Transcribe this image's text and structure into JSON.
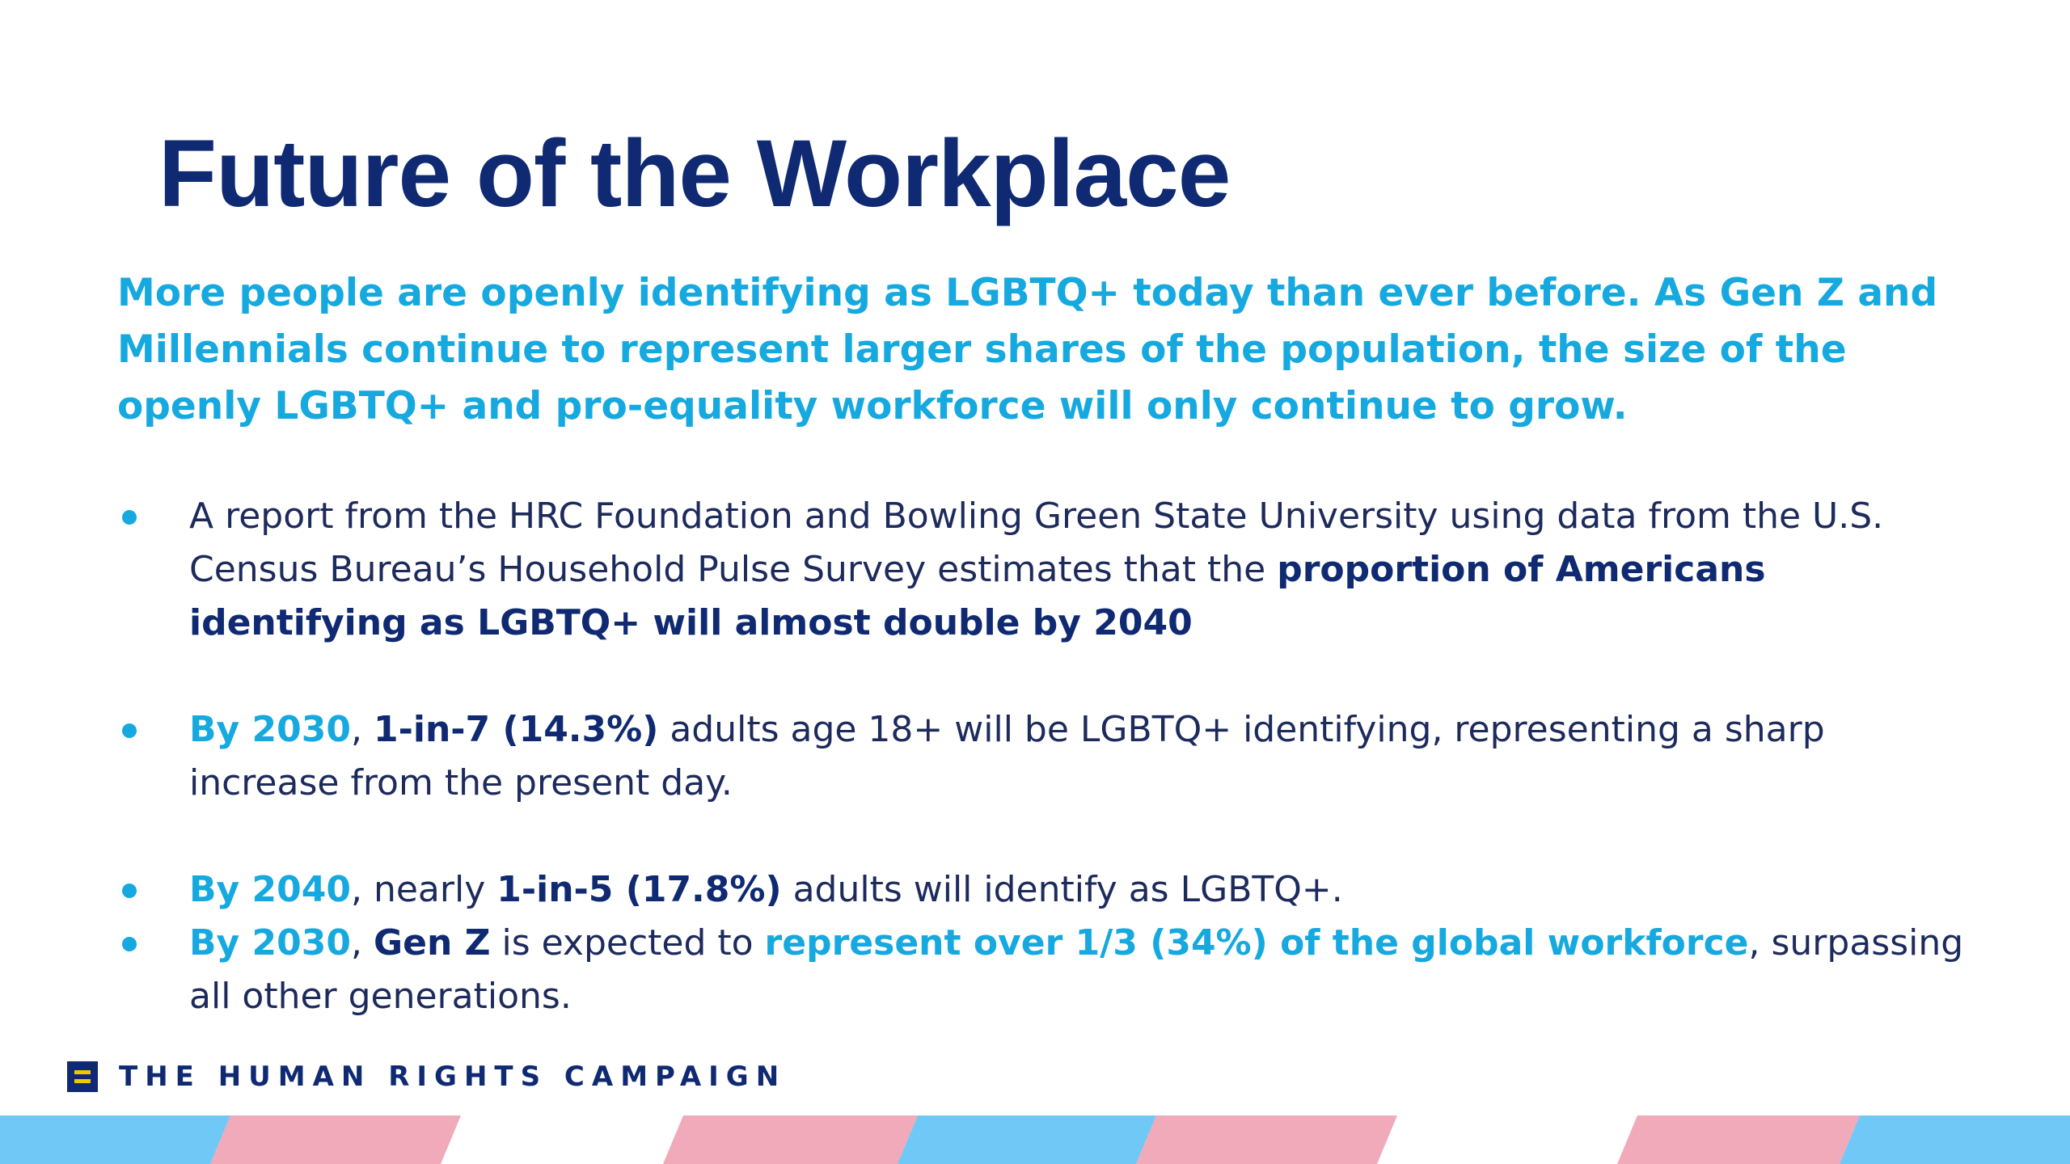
{
  "slide": {
    "title": "Future of the Workplace",
    "intro": "More people are openly identifying as LGBTQ+ today than ever before. As Gen Z and Millennials continue to represent larger shares of the population, the size of the openly LGBTQ+ and pro-equality workforce will only continue to grow.",
    "bullets": [
      {
        "text_1": "A report from the HRC Foundation and Bowling Green State University using data from the U.S. Census Bureau’s Household Pulse Survey estimates that the ",
        "bold_1": "proportion of Americans identifying as LGBTQ+ will almost double by 2040"
      },
      {
        "lead": "By 2030",
        "sep": ", ",
        "bold_1": "1-in-7 (14.3%)",
        "text_1": " adults age 18+ will be LGBTQ+ identifying, representing a sharp increase from the present day."
      },
      {
        "lead": "By 2040",
        "text_1": ", nearly ",
        "bold_1": "1-in-5 (17.8%)",
        "text_2": " adults will identify as LGBTQ+."
      },
      {
        "lead": "By 2030",
        "sep": ", ",
        "bold_1": "Gen Z",
        "text_1": " is expected to ",
        "highlight": "represent over 1/3 (34%) of the global workforce",
        "text_2": ", surpassing all other generations."
      }
    ]
  },
  "footer": {
    "logo_icon": "equality-logo-icon",
    "org_name": "THE HUMAN RIGHTS CAMPAIGN"
  },
  "colors": {
    "navy": "#0f2a72",
    "cyan": "#16a9df",
    "pink": "#f0aab9",
    "light_blue": "#6fc8f5",
    "logo_yellow": "#f5c500"
  }
}
